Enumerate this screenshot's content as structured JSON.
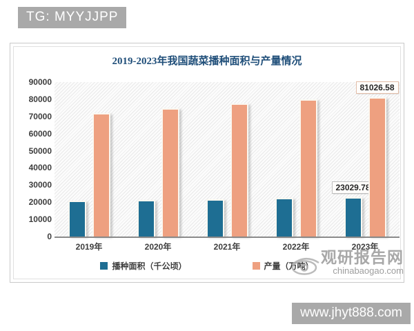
{
  "overlays": {
    "top_badge": "TG: MYYJJPP",
    "bottom_badge": "www.jhyt888.com",
    "watermark_name": "观研报告网",
    "watermark_domain": "chinabaogao.com"
  },
  "colors": {
    "title": "#1f4e79",
    "badge_bg": "#a9a9a9",
    "axis_text": "#3d3d3d"
  },
  "chart_data": {
    "type": "bar",
    "title": "2019-2023年我国蔬菜播种面积与产量情况",
    "categories": [
      "2019年",
      "2020年",
      "2021年",
      "2022年",
      "2023年"
    ],
    "series": [
      {
        "name": "播种面积（千公顷）",
        "color": "#1e6e93",
        "values": [
          20870,
          21430,
          21870,
          22440,
          23029.78
        ]
      },
      {
        "name": "产量（万吨）",
        "color": "#eea080",
        "values": [
          72100,
          74900,
          77550,
          80000,
          81026.58
        ]
      }
    ],
    "ylim": [
      0,
      90000
    ],
    "ytick_step": 10000,
    "grid": false,
    "legend_position": "bottom",
    "background_pattern": "diagonal-hatch",
    "data_labels": [
      {
        "series": 0,
        "index": 4,
        "text": "23029.78",
        "border": "#bfbfbf"
      },
      {
        "series": 1,
        "index": 4,
        "text": "81026.58",
        "border": "#e2bda8"
      }
    ]
  }
}
